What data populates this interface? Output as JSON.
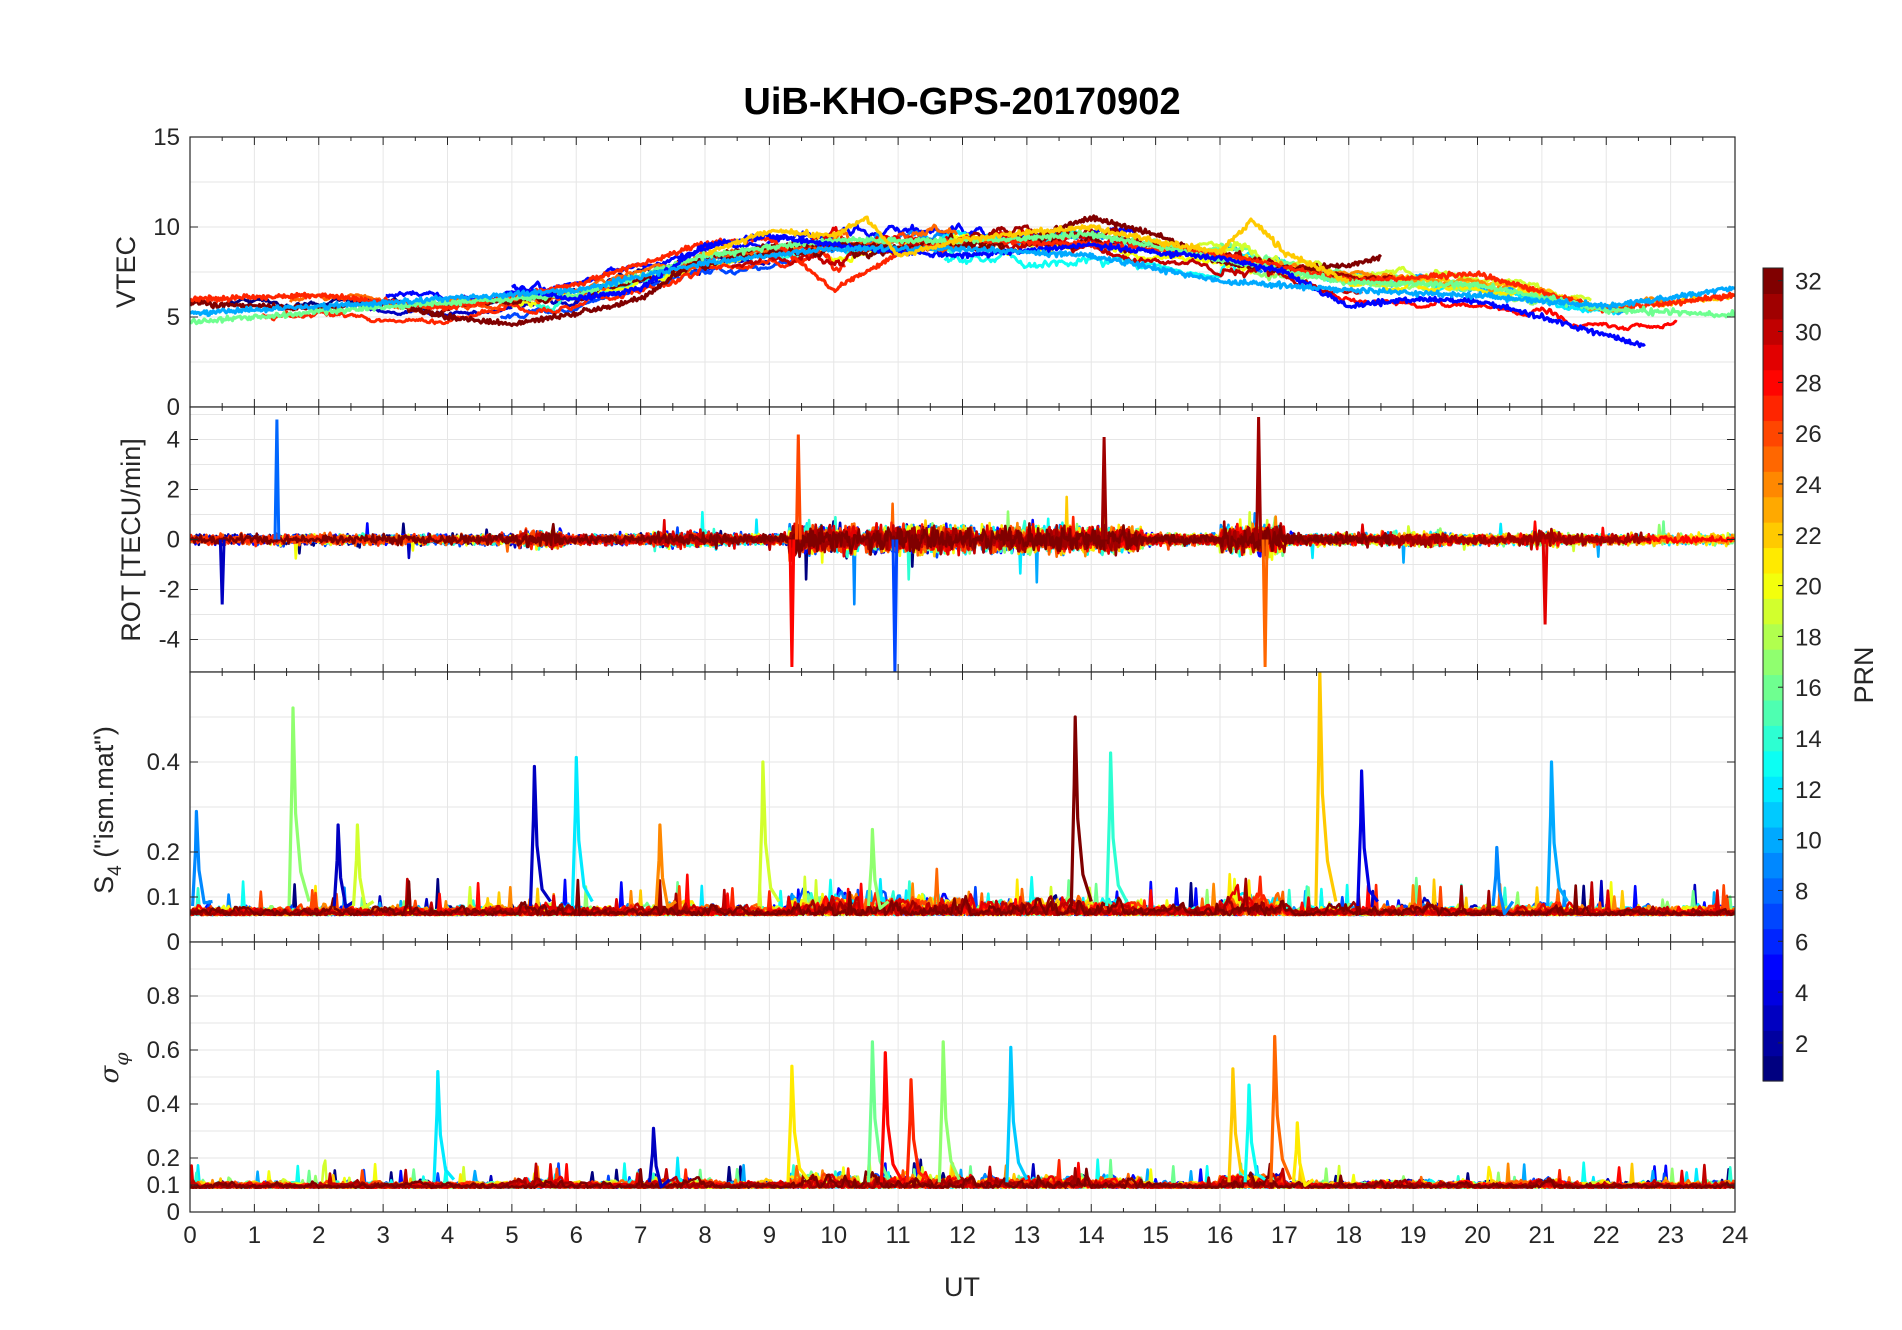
{
  "chart_data": {
    "type": "line",
    "title": "UiB-KHO-GPS-20170902",
    "xlabel": "UT",
    "xlim": [
      0,
      24
    ],
    "x_ticks": [
      "0",
      "1",
      "2",
      "3",
      "4",
      "5",
      "6",
      "7",
      "8",
      "9",
      "10",
      "11",
      "12",
      "13",
      "14",
      "15",
      "16",
      "17",
      "18",
      "19",
      "20",
      "21",
      "22",
      "23",
      "24"
    ],
    "grid": true,
    "colorbar": {
      "label": "PRN",
      "colormap": "jet",
      "range": [
        1,
        32
      ],
      "placement": "right",
      "tick_labels": [
        "2",
        "4",
        "6",
        "8",
        "10",
        "12",
        "14",
        "16",
        "18",
        "20",
        "22",
        "24",
        "26",
        "28",
        "30",
        "32"
      ]
    },
    "panels": [
      {
        "id": "vtec",
        "ylabel": "VTEC",
        "ylim": [
          0,
          15
        ],
        "y_ticks": [
          0,
          5,
          10,
          15
        ],
        "y_tick_labels": [
          "0",
          "5",
          "10",
          "15"
        ],
        "envelope": {
          "x": [
            0,
            2,
            4,
            6,
            8,
            10,
            12,
            14,
            16,
            18,
            20,
            22,
            24
          ],
          "y": [
            5.5,
            5.5,
            5.3,
            6.0,
            8.0,
            8.8,
            9.0,
            9.0,
            8.0,
            6.8,
            6.3,
            5.0,
            5.5
          ]
        },
        "series": [
          {
            "prn": 32,
            "x": [
              0,
              1,
              2,
              3,
              4,
              5,
              6,
              7,
              8,
              9,
              10,
              11,
              12,
              13,
              14,
              15,
              16,
              17,
              18,
              18.5
            ],
            "y": [
              5.8,
              5.6,
              5.5,
              5.8,
              5.0,
              4.6,
              5.2,
              6.0,
              8.4,
              8.9,
              9.1,
              8.8,
              9.0,
              9.3,
              10.5,
              9.6,
              8.0,
              7.6,
              7.9,
              8.3
            ]
          },
          {
            "prn": 27,
            "x": [
              0,
              2,
              4,
              6,
              8,
              9,
              10,
              11,
              12,
              14,
              16,
              18,
              20,
              22,
              24
            ],
            "y": [
              6.0,
              6.2,
              5.5,
              6.8,
              9.1,
              9.4,
              6.5,
              8.5,
              9.3,
              9.0,
              8.5,
              7.0,
              7.4,
              5.4,
              6.2
            ]
          },
          {
            "prn": 16,
            "x": [
              0,
              2,
              4,
              6,
              8,
              10,
              12,
              14,
              16,
              18,
              20,
              22,
              24
            ],
            "y": [
              4.7,
              5.3,
              5.8,
              6.2,
              8.4,
              9.3,
              9.2,
              9.6,
              8.2,
              6.9,
              6.8,
              5.4,
              5.1
            ]
          },
          {
            "prn": 5,
            "x": [
              5,
              6,
              7,
              8,
              9,
              10,
              11,
              12,
              13,
              14,
              15,
              16,
              17,
              18,
              19,
              20,
              21,
              22,
              22.6
            ],
            "y": [
              6.6,
              6.0,
              6.6,
              9.0,
              9.5,
              9.0,
              8.6,
              8.4,
              8.7,
              9.0,
              8.6,
              8.3,
              7.5,
              5.6,
              6.0,
              5.9,
              5.0,
              4.0,
              3.4
            ]
          },
          {
            "prn": 10,
            "x": [
              0,
              2,
              4,
              6,
              8,
              10,
              12,
              14,
              16,
              18,
              20,
              22,
              24
            ],
            "y": [
              5.2,
              5.6,
              6.0,
              6.5,
              8.0,
              8.8,
              8.8,
              8.4,
              7.0,
              6.5,
              6.2,
              5.6,
              6.6
            ]
          },
          {
            "prn": 22,
            "x": [
              8,
              9,
              10,
              10.5,
              11,
              12,
              13,
              14,
              15,
              16,
              16.5,
              17,
              18
            ],
            "y": [
              8.5,
              9.8,
              9.5,
              10.5,
              8.4,
              9.3,
              9.7,
              10.0,
              9.2,
              8.6,
              10.4,
              8.6,
              6.9
            ]
          }
        ]
      },
      {
        "id": "rot",
        "ylabel": "ROT [TECU/min]",
        "ylim": [
          -5.3,
          5.3
        ],
        "y_ticks": [
          -4,
          -2,
          0,
          2,
          4
        ],
        "y_tick_labels": [
          "-4",
          "-2",
          "0",
          "2",
          "4"
        ],
        "peaks": [
          {
            "prn": 8,
            "x": 1.35,
            "y": 4.8
          },
          {
            "prn": 26,
            "x": 9.45,
            "y": 4.2
          },
          {
            "prn": 28,
            "x": 9.35,
            "y": -5.1
          },
          {
            "prn": 7,
            "x": 10.95,
            "y": -5.3
          },
          {
            "prn": 31,
            "x": 14.2,
            "y": 4.1
          },
          {
            "prn": 31,
            "x": 16.6,
            "y": 4.9
          },
          {
            "prn": 25,
            "x": 16.7,
            "y": -5.1
          },
          {
            "prn": 3,
            "x": 0.5,
            "y": -2.6
          },
          {
            "prn": 29,
            "x": 21.05,
            "y": -3.4
          }
        ]
      },
      {
        "id": "s4",
        "ylabel": "S4 (\"ism.mat\")",
        "ylim": [
          0,
          0.6
        ],
        "y_ticks": [
          0,
          0.1,
          0.2,
          0.4
        ],
        "y_tick_labels": [
          "0",
          "0.1",
          "0.2",
          "0.4"
        ],
        "baseline": 0.06,
        "peaks": [
          {
            "prn": 9,
            "x": 0.1,
            "y": 0.29
          },
          {
            "prn": 17,
            "x": 1.6,
            "y": 0.52
          },
          {
            "prn": 3,
            "x": 2.3,
            "y": 0.26
          },
          {
            "prn": 19,
            "x": 2.6,
            "y": 0.26
          },
          {
            "prn": 3,
            "x": 5.35,
            "y": 0.39
          },
          {
            "prn": 12,
            "x": 6.0,
            "y": 0.41
          },
          {
            "prn": 24,
            "x": 7.3,
            "y": 0.26
          },
          {
            "prn": 19,
            "x": 8.9,
            "y": 0.4
          },
          {
            "prn": 17,
            "x": 10.6,
            "y": 0.25
          },
          {
            "prn": 32,
            "x": 13.75,
            "y": 0.5
          },
          {
            "prn": 14,
            "x": 14.3,
            "y": 0.42
          },
          {
            "prn": 22,
            "x": 17.55,
            "y": 0.6
          },
          {
            "prn": 4,
            "x": 18.2,
            "y": 0.38
          },
          {
            "prn": 9,
            "x": 20.3,
            "y": 0.21
          },
          {
            "prn": 10,
            "x": 21.15,
            "y": 0.4
          }
        ]
      },
      {
        "id": "sigma_phi",
        "ylabel": "σφ",
        "ylim": [
          0,
          1
        ],
        "y_ticks": [
          0,
          0.1,
          0.2,
          0.4,
          0.6,
          0.8
        ],
        "y_tick_labels": [
          "0",
          "0.1",
          "0.2",
          "0.4",
          "0.6",
          "0.8"
        ],
        "baseline": 0.09,
        "peaks": [
          {
            "prn": 12,
            "x": 3.85,
            "y": 0.52
          },
          {
            "prn": 3,
            "x": 7.2,
            "y": 0.31
          },
          {
            "prn": 21,
            "x": 9.35,
            "y": 0.54
          },
          {
            "prn": 16,
            "x": 10.6,
            "y": 0.63
          },
          {
            "prn": 28,
            "x": 10.8,
            "y": 0.59
          },
          {
            "prn": 27,
            "x": 11.2,
            "y": 0.49
          },
          {
            "prn": 17,
            "x": 11.7,
            "y": 0.63
          },
          {
            "prn": 11,
            "x": 12.75,
            "y": 0.61
          },
          {
            "prn": 22,
            "x": 16.2,
            "y": 0.53
          },
          {
            "prn": 13,
            "x": 16.45,
            "y": 0.47
          },
          {
            "prn": 25,
            "x": 16.85,
            "y": 0.65
          },
          {
            "prn": 21,
            "x": 17.2,
            "y": 0.33
          }
        ]
      }
    ]
  }
}
